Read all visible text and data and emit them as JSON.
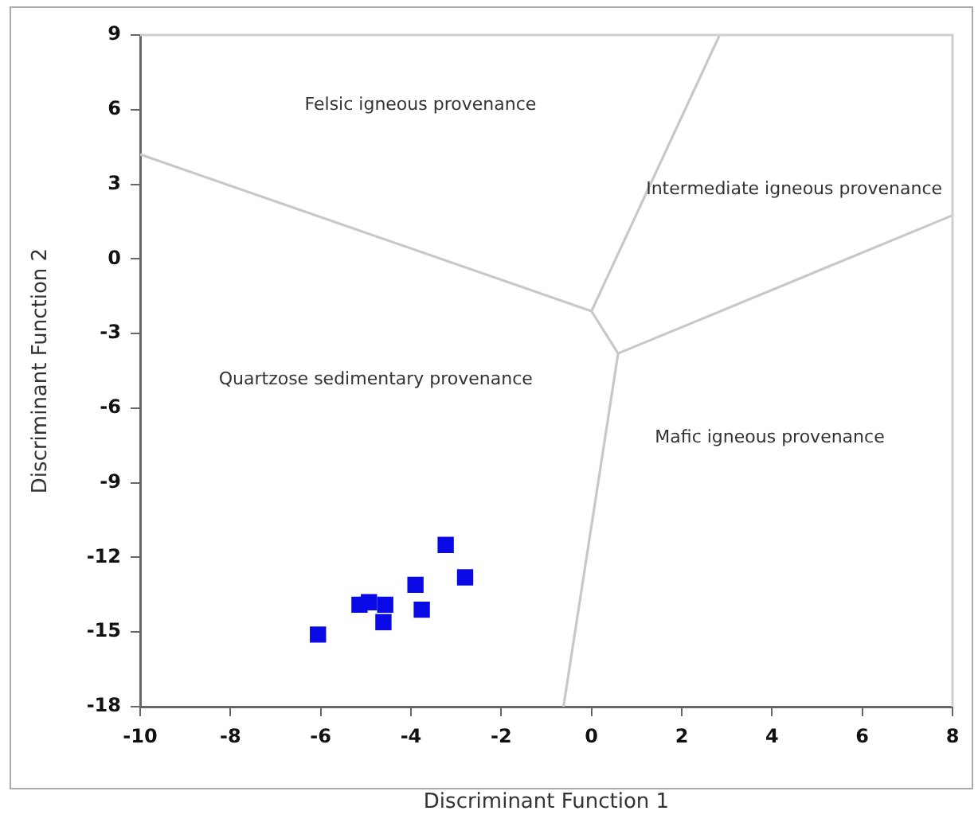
{
  "chart_data": {
    "type": "scatter",
    "xlabel": "Discriminant Function 1",
    "ylabel": "Discriminant Function 2",
    "xlim": [
      -10,
      8
    ],
    "xticks": [
      -10,
      -8,
      -6,
      -4,
      -2,
      0,
      2,
      4,
      6,
      8
    ],
    "ylim": [
      -18,
      9
    ],
    "yticks": [
      -18,
      -15,
      -12,
      -9,
      -6,
      -3,
      0,
      3,
      6,
      9
    ],
    "grid": false,
    "legend": false,
    "marker": "square",
    "series": [
      {
        "color": "#0a0ae6",
        "x": [
          -6.06,
          -5.14,
          -4.93,
          -4.57,
          -4.61,
          -3.9,
          -3.76,
          -3.23,
          -2.8
        ],
        "values": [
          -15.1,
          -13.9,
          -13.8,
          -13.9,
          -14.6,
          -13.1,
          -14.1,
          -11.5,
          -12.8
        ]
      },
      {
        "type": "line",
        "color": "#c8c8c8",
        "marker": "none",
        "x": [
          -10,
          0.0
        ],
        "values": [
          4.2,
          -2.1
        ]
      },
      {
        "type": "line",
        "color": "#c8c8c8",
        "marker": "none",
        "x": [
          0.0,
          2.84
        ],
        "values": [
          -2.1,
          9
        ]
      },
      {
        "type": "line",
        "color": "#c8c8c8",
        "marker": "none",
        "x": [
          0.0,
          0.59
        ],
        "values": [
          -2.1,
          -3.8
        ]
      },
      {
        "type": "line",
        "color": "#c8c8c8",
        "marker": "none",
        "x": [
          0.59,
          8
        ],
        "values": [
          -3.8,
          1.75
        ]
      },
      {
        "type": "line",
        "color": "#c8c8c8",
        "marker": "none",
        "x": [
          0.59,
          -0.62
        ],
        "values": [
          -3.8,
          -18
        ]
      }
    ],
    "annotations": [
      "Felsic igneous provenance",
      "Intermediate igneous provenance",
      "Quartzose sedimentary provenance",
      "Mafic igneous provenance"
    ]
  }
}
